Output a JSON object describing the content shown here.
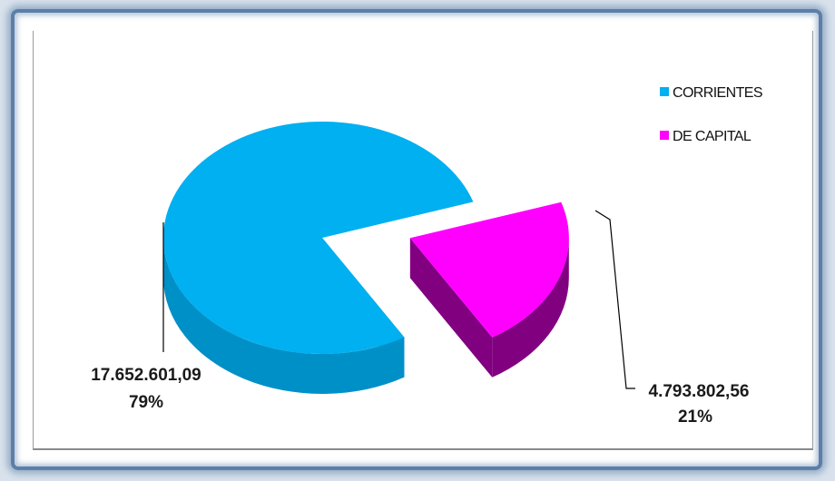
{
  "chart_data": {
    "type": "pie",
    "style": "3d-exploded",
    "series": [
      {
        "name": "CORRIENTES",
        "value_label": "17.652.601,09",
        "percent_label": "79%",
        "value": 17652601.09,
        "percent": 79,
        "color": "#00b0f0",
        "side_color": "#0090c8"
      },
      {
        "name": "DE CAPITAL",
        "value_label": "4.793.802,56",
        "percent_label": "21%",
        "value": 4793802.56,
        "percent": 21,
        "color": "#ff00ff",
        "side_color": "#800080"
      }
    ],
    "legend_position": "top-right"
  }
}
